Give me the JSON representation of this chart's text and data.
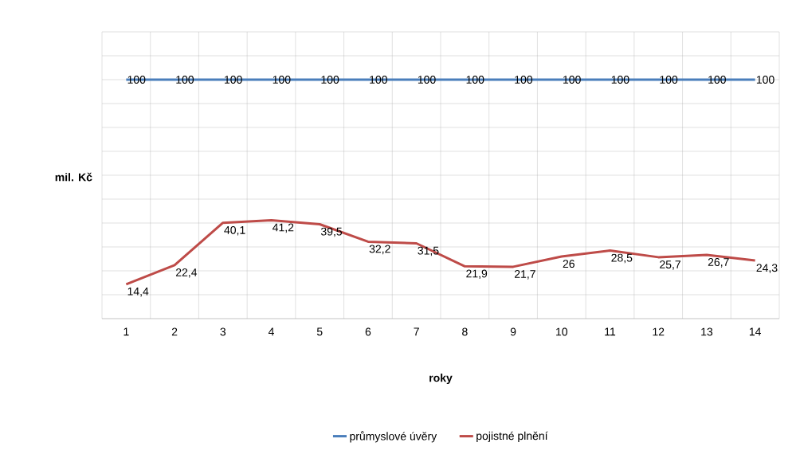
{
  "chart_data": {
    "type": "line",
    "xlabel": "roky",
    "ylabel": "mil. Kč",
    "categories": [
      "1",
      "2",
      "3",
      "4",
      "5",
      "6",
      "7",
      "8",
      "9",
      "10",
      "11",
      "12",
      "13",
      "14"
    ],
    "series": [
      {
        "name": "průmyslové úvěry",
        "color": "#4a7ebb",
        "values": [
          100,
          100,
          100,
          100,
          100,
          100,
          100,
          100,
          100,
          100,
          100,
          100,
          100,
          100
        ],
        "value_labels": [
          "100",
          "100",
          "100",
          "100",
          "100",
          "100",
          "100",
          "100",
          "100",
          "100",
          "100",
          "100",
          "100",
          "100"
        ]
      },
      {
        "name": "pojistné plnění",
        "color": "#be4b48",
        "values": [
          14.4,
          22.4,
          40.1,
          41.2,
          39.5,
          32.2,
          31.5,
          21.9,
          21.7,
          26,
          28.5,
          25.7,
          26.7,
          24.3
        ],
        "value_labels": [
          "14,4",
          "22,4",
          "40,1",
          "41,2",
          "39,5",
          "32,2",
          "31,5",
          "21,9",
          "21,7",
          "26",
          "28,5",
          "25,7",
          "26,7",
          "24,3"
        ]
      }
    ],
    "ylim": [
      0,
      120
    ],
    "grid": true,
    "legend": "bottom",
    "tick_labels": "x",
    "marker": "none",
    "line_style": "solid"
  }
}
